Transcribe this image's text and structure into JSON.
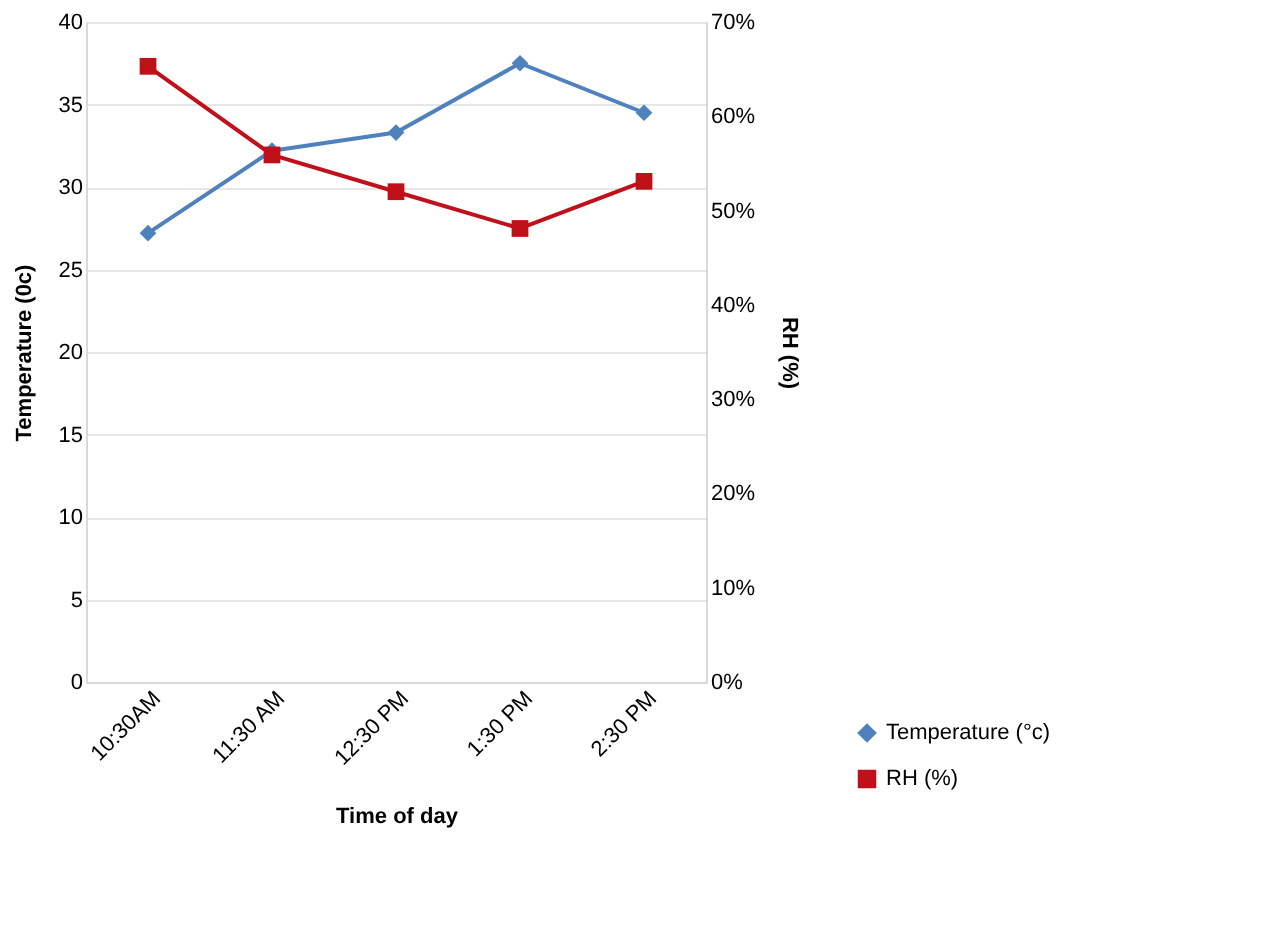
{
  "chart_data": {
    "type": "line",
    "xlabel": "Time of day",
    "ylabel": "Temperature (0c)",
    "y2label": "RH (%)",
    "categories": [
      "10:30AM",
      "11:30 AM",
      "12:30 PM",
      "1:30 PM",
      "2:30 PM"
    ],
    "series": [
      {
        "name": "Temperature (°c)",
        "color": "#4f81bd",
        "marker": "diamond",
        "values": [
          27.2,
          32.2,
          33.3,
          37.5,
          34.5
        ]
      },
      {
        "name": "RH (%)",
        "color": "#c0101a",
        "marker": "square",
        "axis": "y2",
        "values": [
          65.3,
          55.9,
          52.0,
          48.1,
          53.1
        ]
      }
    ],
    "ylim": [
      0,
      40
    ],
    "yticks": [
      0,
      5,
      10,
      15,
      20,
      25,
      30,
      35,
      40
    ],
    "y2lim": [
      0,
      70
    ],
    "y2ticks": [
      {
        "value": 0,
        "label": "0%"
      },
      {
        "value": 10,
        "label": "10%"
      },
      {
        "value": 20,
        "label": "20%"
      },
      {
        "value": 30,
        "label": "30%"
      },
      {
        "value": 40,
        "label": "40%"
      },
      {
        "value": 50,
        "label": "50%"
      },
      {
        "value": 60,
        "label": "60%"
      },
      {
        "value": 70,
        "label": "70%"
      }
    ],
    "grid": "y",
    "legend": "bottom right"
  }
}
